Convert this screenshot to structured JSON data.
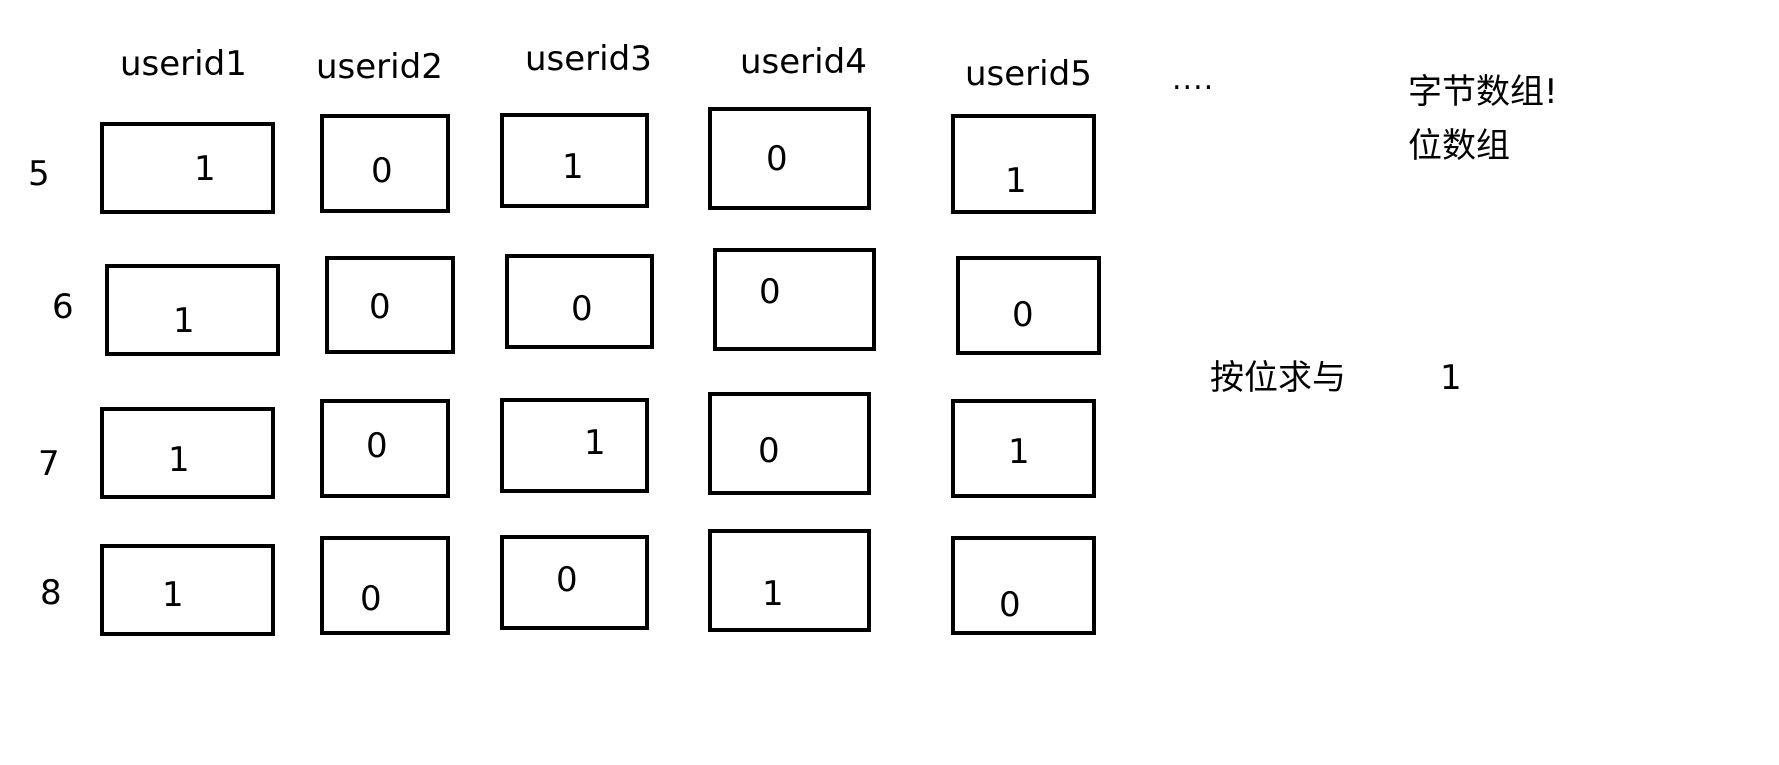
{
  "columns": [
    "userid1",
    "userid2",
    "userid3",
    "userid4",
    "userid5"
  ],
  "ellipsis": "....",
  "rows": [
    {
      "label": "5",
      "bits": [
        "1",
        "0",
        "1",
        "0",
        "1"
      ]
    },
    {
      "label": "6",
      "bits": [
        "1",
        "0",
        "0",
        "0",
        "0"
      ]
    },
    {
      "label": "7",
      "bits": [
        "1",
        "0",
        "1",
        "0",
        "1"
      ]
    },
    {
      "label": "8",
      "bits": [
        "1",
        "0",
        "0",
        "1",
        "0"
      ]
    }
  ],
  "notes": {
    "byte_array": "字节数组!",
    "bit_array": "位数组",
    "bitwise_and": "按位求与",
    "bitwise_and_result": "1"
  }
}
